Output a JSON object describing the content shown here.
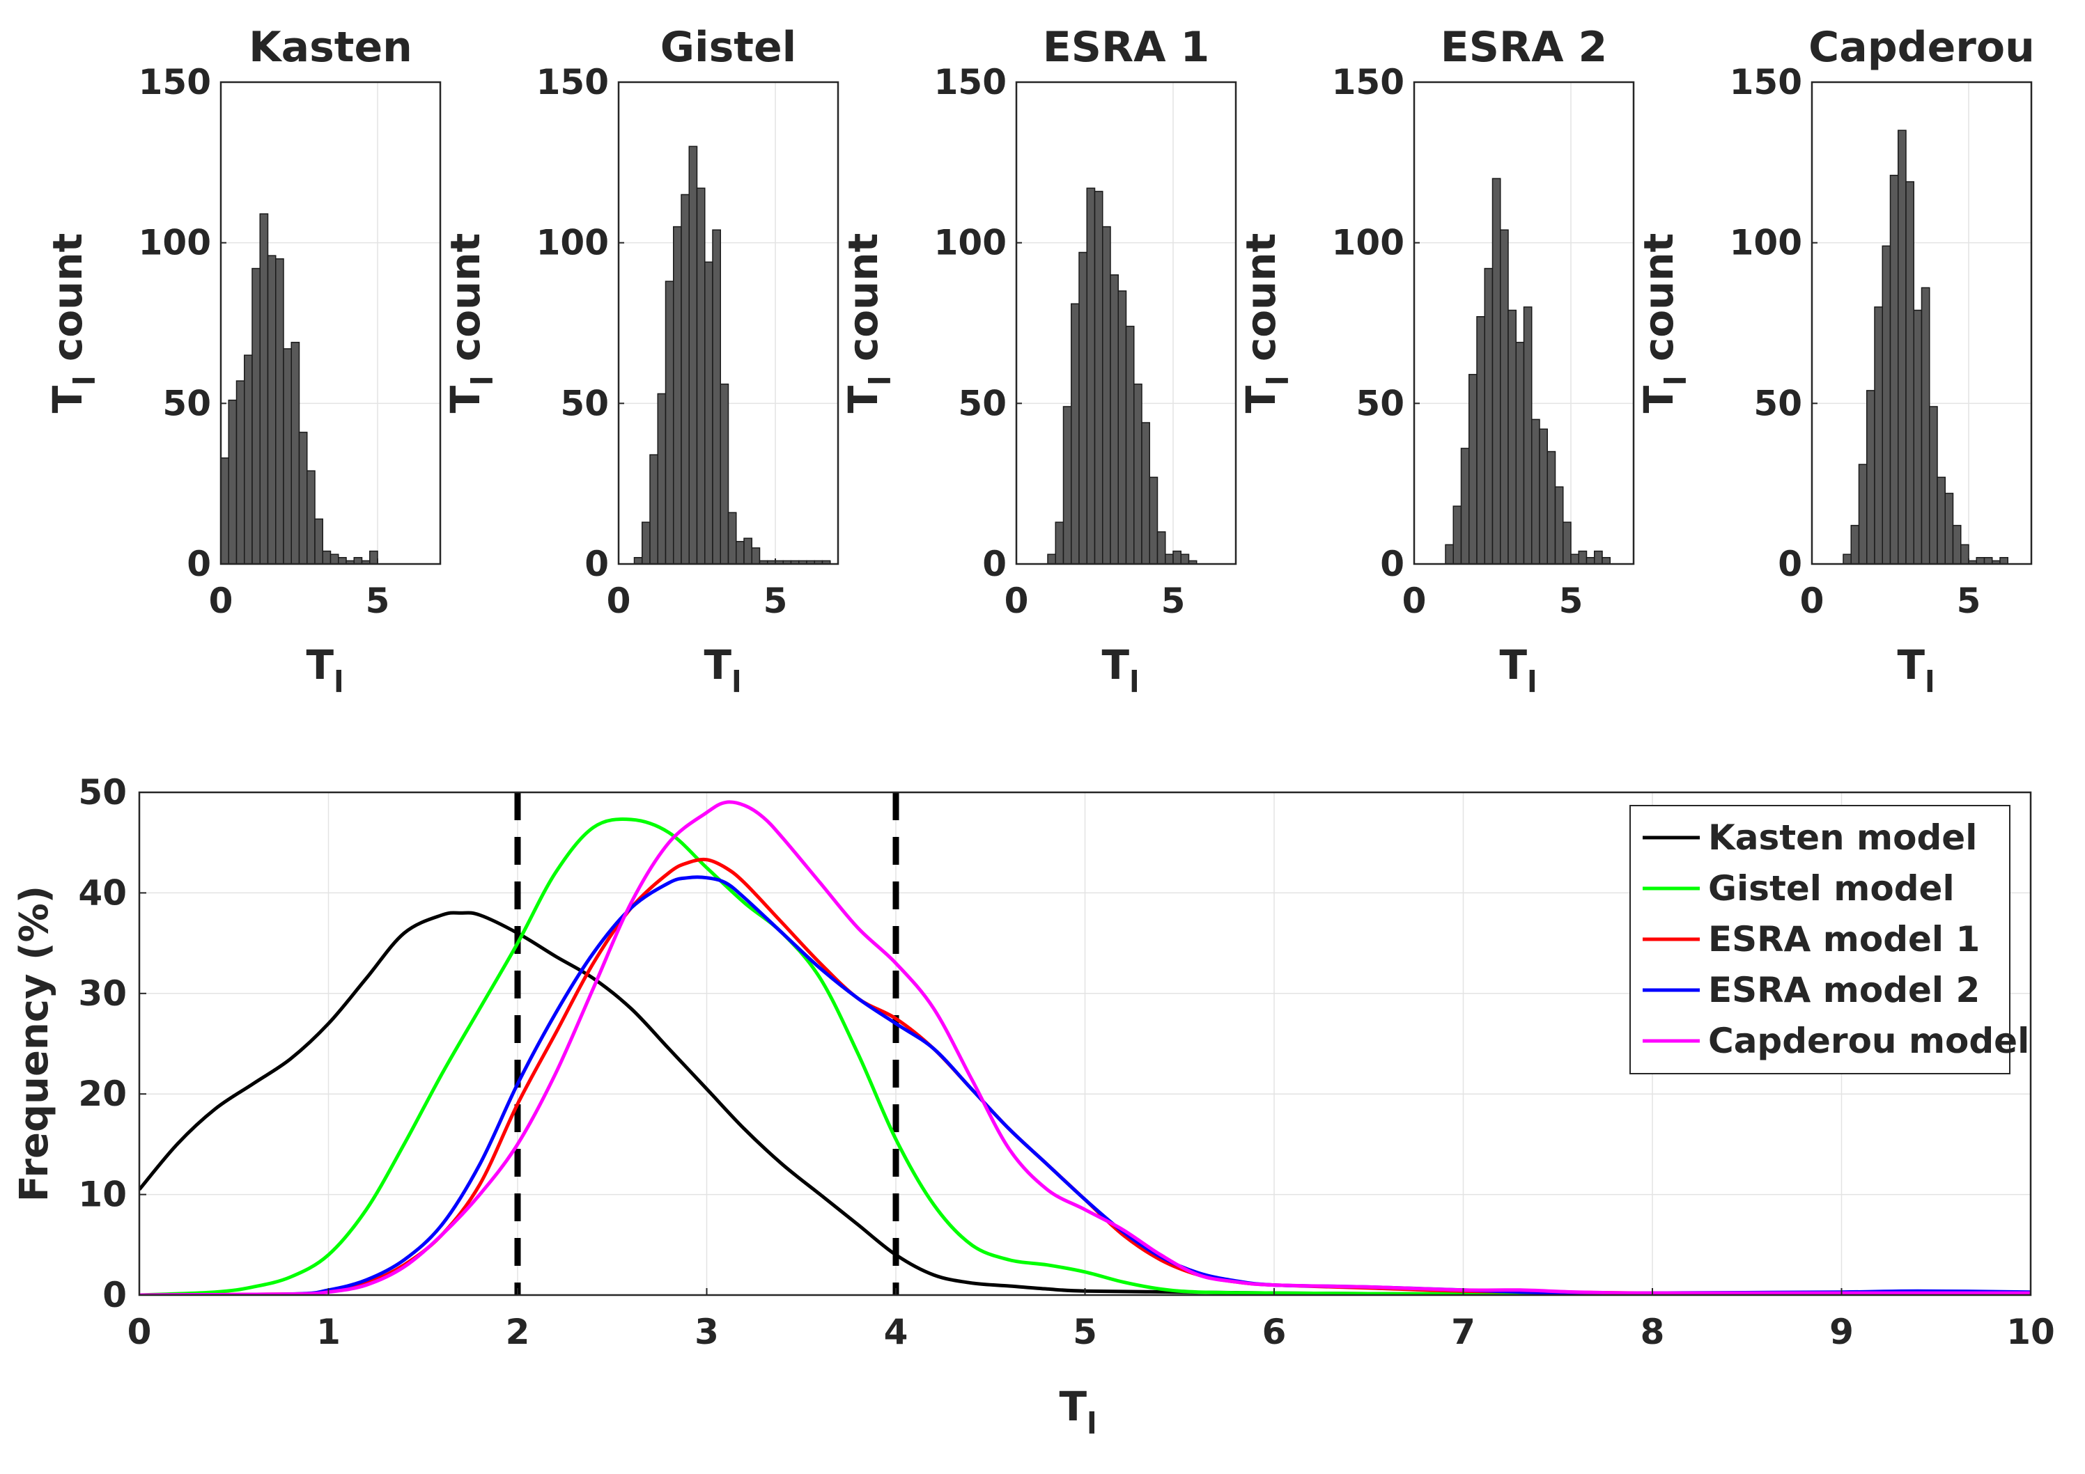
{
  "chart_data": [
    {
      "type": "bar",
      "title": "Kasten",
      "xlabel": "T",
      "xlabel_sub": "l",
      "ylabel": "T",
      "ylabel_sub": "l",
      "ylabel_rest": " count",
      "xlim": [
        0,
        7
      ],
      "ylim": [
        0,
        150
      ],
      "xticks": [
        0,
        5
      ],
      "yticks": [
        0,
        50,
        100,
        150
      ],
      "bin_width": 0.25,
      "bin_start": 0,
      "counts": [
        33,
        51,
        57,
        65,
        92,
        109,
        96,
        95,
        67,
        69,
        41,
        29,
        14,
        4,
        3,
        2,
        1,
        2,
        1,
        4
      ],
      "bar_color": "#595959"
    },
    {
      "type": "bar",
      "title": "Gistel",
      "xlabel": "T",
      "xlabel_sub": "l",
      "ylabel": "T",
      "ylabel_sub": "l",
      "ylabel_rest": " count",
      "xlim": [
        0,
        7
      ],
      "ylim": [
        0,
        150
      ],
      "xticks": [
        0,
        5
      ],
      "yticks": [
        0,
        50,
        100,
        150
      ],
      "bin_width": 0.25,
      "bin_start": 0.5,
      "counts": [
        2,
        13,
        34,
        53,
        88,
        105,
        115,
        130,
        117,
        94,
        104,
        56,
        16,
        7,
        8,
        5,
        1,
        1,
        1,
        1,
        1,
        1,
        1,
        1,
        1
      ],
      "bar_color": "#595959"
    },
    {
      "type": "bar",
      "title": "ESRA 1",
      "xlabel": "T",
      "xlabel_sub": "l",
      "ylabel": "T",
      "ylabel_sub": "l",
      "ylabel_rest": " count",
      "xlim": [
        0,
        7
      ],
      "ylim": [
        0,
        150
      ],
      "xticks": [
        0,
        5
      ],
      "yticks": [
        0,
        50,
        100,
        150
      ],
      "bin_width": 0.25,
      "bin_start": 1.0,
      "counts": [
        3,
        13,
        49,
        81,
        97,
        117,
        116,
        105,
        90,
        85,
        74,
        56,
        44,
        27,
        10,
        3,
        4,
        3,
        1
      ],
      "bar_color": "#595959"
    },
    {
      "type": "bar",
      "title": "ESRA 2",
      "xlabel": "T",
      "xlabel_sub": "l",
      "ylabel": "T",
      "ylabel_sub": "l",
      "ylabel_rest": " count",
      "xlim": [
        0,
        7
      ],
      "ylim": [
        0,
        150
      ],
      "xticks": [
        0,
        5
      ],
      "yticks": [
        0,
        50,
        100,
        150
      ],
      "bin_width": 0.25,
      "bin_start": 1.0,
      "counts": [
        6,
        18,
        36,
        59,
        77,
        92,
        120,
        104,
        79,
        69,
        80,
        45,
        42,
        35,
        24,
        13,
        3,
        4,
        2,
        4,
        2
      ],
      "bar_color": "#595959"
    },
    {
      "type": "bar",
      "title": "Capderou",
      "xlabel": "T",
      "xlabel_sub": "l",
      "ylabel": "T",
      "ylabel_sub": "l",
      "ylabel_rest": " count",
      "xlim": [
        0,
        7
      ],
      "ylim": [
        0,
        150
      ],
      "xticks": [
        0,
        5
      ],
      "yticks": [
        0,
        50,
        100,
        150
      ],
      "bin_width": 0.25,
      "bin_start": 1.0,
      "counts": [
        3,
        12,
        31,
        54,
        80,
        99,
        121,
        135,
        119,
        79,
        86,
        49,
        27,
        22,
        12,
        6,
        1,
        2,
        2,
        1,
        2
      ],
      "bar_color": "#595959"
    },
    {
      "type": "line",
      "title": "",
      "xlabel": "T",
      "xlabel_sub": "l",
      "ylabel": "Frequency (%)",
      "xlim": [
        0,
        10
      ],
      "ylim": [
        0,
        50
      ],
      "xticks": [
        0,
        1,
        2,
        3,
        4,
        5,
        6,
        7,
        8,
        9,
        10
      ],
      "yticks": [
        0,
        10,
        20,
        30,
        40,
        50
      ],
      "grid": true,
      "legend_position": "top-right",
      "vlines": [
        2,
        4
      ],
      "series": [
        {
          "name": "Kasten model",
          "color": "#000000",
          "x": [
            0,
            0.2,
            0.4,
            0.6,
            0.8,
            1.0,
            1.2,
            1.4,
            1.6,
            1.7,
            1.8,
            2.0,
            2.2,
            2.4,
            2.6,
            2.8,
            3.0,
            3.2,
            3.4,
            3.6,
            3.8,
            4.0,
            4.2,
            4.4,
            4.6,
            4.8,
            5.0,
            5.5,
            6.0,
            7.0,
            8.0,
            9.0,
            10.0
          ],
          "y": [
            10.5,
            15.0,
            18.5,
            21.0,
            23.5,
            27.0,
            31.5,
            36.0,
            37.8,
            38.0,
            37.8,
            36.0,
            33.7,
            31.5,
            28.5,
            24.5,
            20.5,
            16.5,
            13.0,
            10.0,
            7.0,
            4.0,
            2.0,
            1.2,
            0.9,
            0.6,
            0.4,
            0.3,
            0.2,
            0.1,
            0.1,
            0.1,
            0.1
          ]
        },
        {
          "name": "Gistel model",
          "color": "#00ff00",
          "x": [
            0,
            0.4,
            0.6,
            0.8,
            1.0,
            1.2,
            1.4,
            1.6,
            1.8,
            2.0,
            2.2,
            2.4,
            2.6,
            2.8,
            3.0,
            3.2,
            3.4,
            3.6,
            3.8,
            4.0,
            4.2,
            4.4,
            4.6,
            4.8,
            5.0,
            5.2,
            5.4,
            5.6,
            6.0,
            7.0,
            8.0,
            10.0
          ],
          "y": [
            0,
            0.3,
            0.8,
            1.8,
            4.0,
            8.5,
            15.0,
            22.0,
            28.5,
            35.0,
            42.0,
            46.5,
            47.3,
            46.0,
            42.5,
            39.0,
            36.0,
            31.5,
            24.0,
            15.5,
            9.0,
            5.0,
            3.5,
            3.0,
            2.3,
            1.3,
            0.6,
            0.3,
            0.2,
            0.1,
            0.1,
            0.1
          ]
        },
        {
          "name": "ESRA model 1",
          "color": "#ff0000",
          "x": [
            0,
            0.8,
            1.0,
            1.2,
            1.4,
            1.6,
            1.8,
            2.0,
            2.2,
            2.4,
            2.6,
            2.8,
            2.9,
            3.0,
            3.1,
            3.2,
            3.4,
            3.6,
            3.8,
            4.0,
            4.2,
            4.4,
            4.6,
            4.8,
            5.0,
            5.2,
            5.4,
            5.6,
            5.8,
            6.0,
            6.5,
            7.0,
            7.5,
            8.0,
            9.0,
            10.0
          ],
          "y": [
            0,
            0.1,
            0.4,
            1.2,
            3.0,
            6.0,
            11.0,
            19.0,
            26.0,
            33.0,
            38.5,
            42.0,
            43.0,
            43.3,
            42.5,
            41.0,
            37.0,
            33.0,
            29.5,
            27.5,
            24.5,
            20.5,
            16.5,
            13.0,
            9.5,
            6.0,
            3.5,
            2.0,
            1.3,
            1.0,
            0.7,
            0.4,
            0.3,
            0.2,
            0.2,
            0.2
          ]
        },
        {
          "name": "ESRA model 2",
          "color": "#0000ff",
          "x": [
            0,
            0.8,
            1.0,
            1.2,
            1.4,
            1.6,
            1.8,
            2.0,
            2.2,
            2.4,
            2.6,
            2.8,
            2.9,
            3.0,
            3.1,
            3.2,
            3.4,
            3.6,
            3.8,
            4.0,
            4.2,
            4.4,
            4.6,
            4.8,
            5.0,
            5.2,
            5.4,
            5.6,
            5.8,
            6.0,
            6.5,
            7.0,
            7.5,
            8.0,
            9.0,
            9.4,
            10.0
          ],
          "y": [
            0,
            0.1,
            0.5,
            1.5,
            3.5,
            7.0,
            13.0,
            21.0,
            28.0,
            34.0,
            38.5,
            41.0,
            41.5,
            41.5,
            41.0,
            39.5,
            36.0,
            32.5,
            29.5,
            27.0,
            24.5,
            20.5,
            16.5,
            13.0,
            9.5,
            6.3,
            3.8,
            2.2,
            1.4,
            1.0,
            0.8,
            0.5,
            0.2,
            0.2,
            0.3,
            0.4,
            0.3
          ]
        },
        {
          "name": "Capderou model",
          "color": "#ff00ff",
          "x": [
            0,
            0.8,
            1.0,
            1.2,
            1.4,
            1.6,
            1.8,
            2.0,
            2.2,
            2.4,
            2.6,
            2.8,
            3.0,
            3.1,
            3.2,
            3.3,
            3.4,
            3.6,
            3.8,
            4.0,
            4.2,
            4.4,
            4.6,
            4.8,
            5.0,
            5.2,
            5.4,
            5.6,
            5.8,
            6.0,
            6.5,
            7.0,
            7.3,
            7.6,
            8.0,
            9.0,
            10.0
          ],
          "y": [
            0,
            0.1,
            0.3,
            1.0,
            2.8,
            6.0,
            10.0,
            15.0,
            22.0,
            30.5,
            39.0,
            45.0,
            48.0,
            49.0,
            48.7,
            47.5,
            45.5,
            41.0,
            36.5,
            33.0,
            28.5,
            21.5,
            14.5,
            10.5,
            8.5,
            6.5,
            4.0,
            2.0,
            1.3,
            1.0,
            0.8,
            0.5,
            0.5,
            0.3,
            0.2,
            0.2,
            0.2
          ]
        }
      ]
    }
  ]
}
